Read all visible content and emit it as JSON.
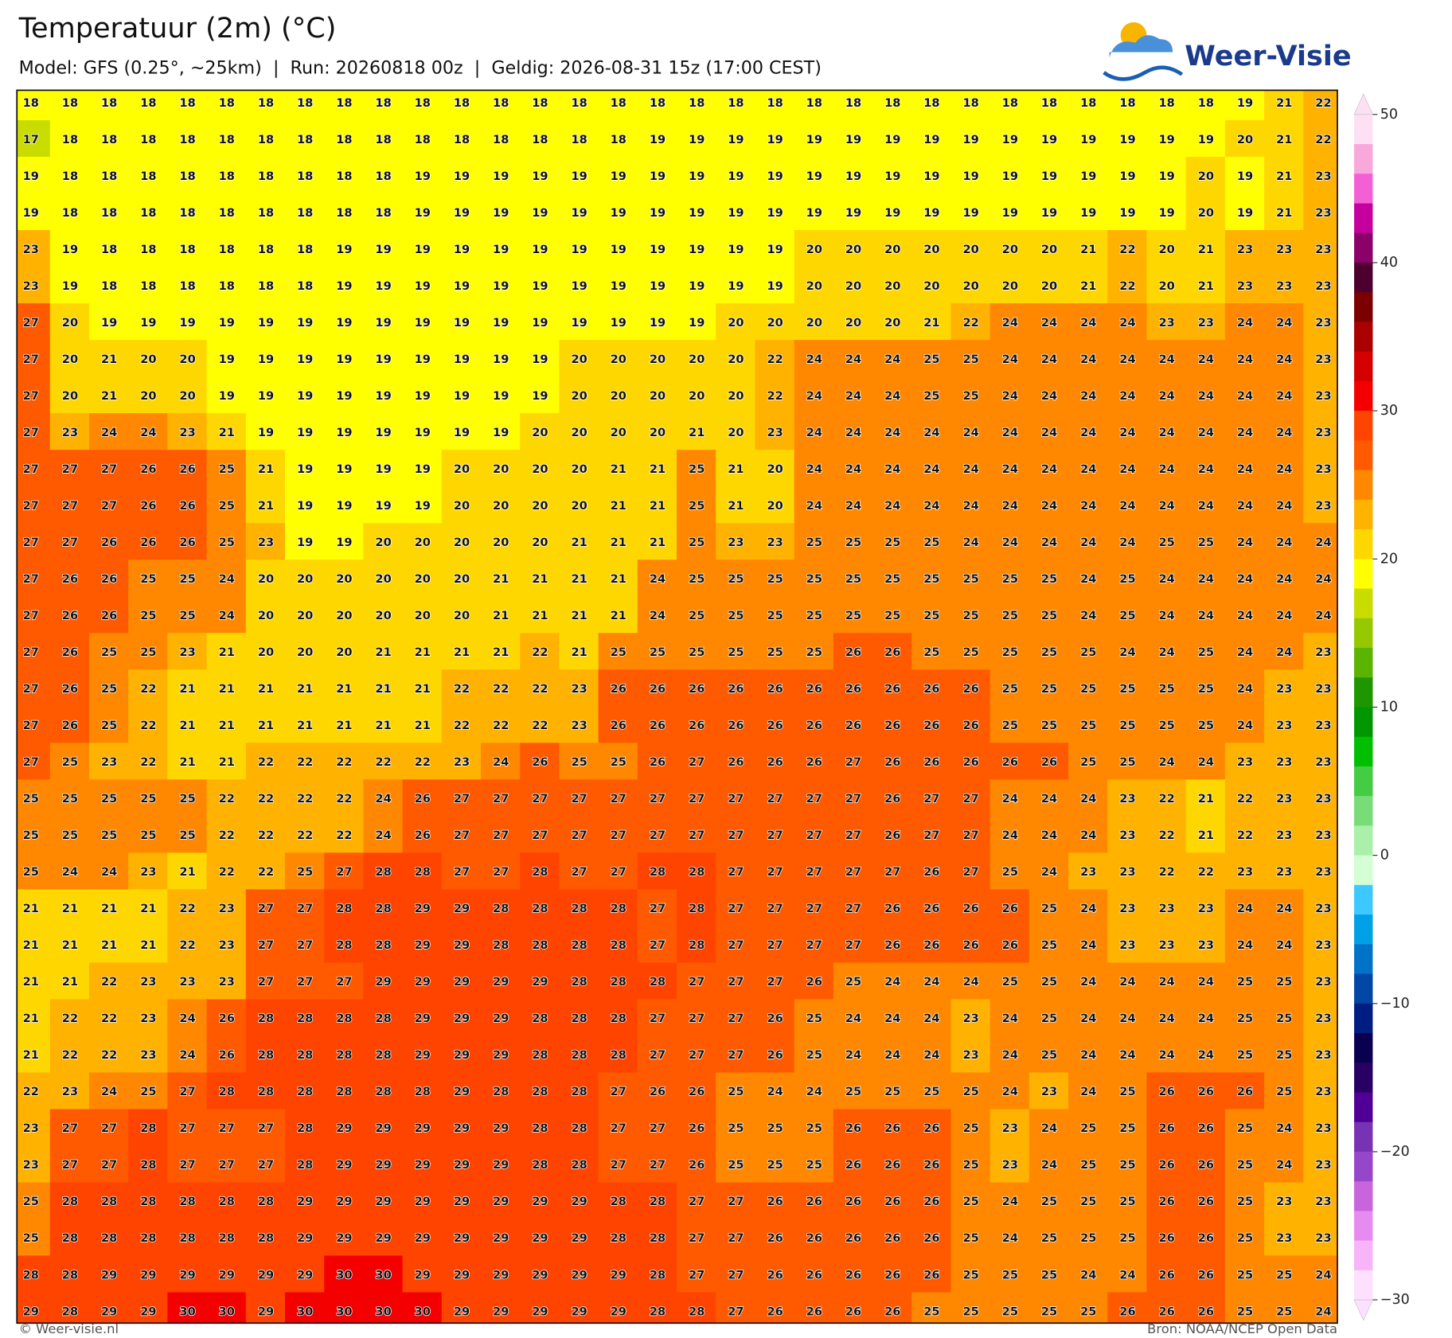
{
  "header": {
    "title": "Temperatuur (2m) (°C)",
    "subtitle": "Model: GFS (0.25°, ~25km)  |  Run: 20260818 00z  |  Geldig: 2026-08-31 15z (17:00 CEST)",
    "logo": "Weer-Visie"
  },
  "footer": {
    "copyright": "© Weer-visie.nl",
    "source": "Bron: NOAA/NCEP Open Data"
  },
  "colorbar": {
    "lim": [
      -30,
      50
    ],
    "ticks": [
      50,
      40,
      30,
      20,
      10,
      0,
      {
        "value": -10,
        "label": "−10"
      },
      {
        "value": -20,
        "label": "−20"
      },
      {
        "value": -30,
        "label": "−30"
      }
    ],
    "colors": [
      "#fde0f4",
      "#f9a8dc",
      "#f45fd5",
      "#c6009f",
      "#8b0069",
      "#4d0030",
      "#7d0000",
      "#aa0000",
      "#d40000",
      "#f50000",
      "#ff4400",
      "#ff5a00",
      "#ff8800",
      "#ffb200",
      "#ffd700",
      "#ffff00",
      "#c9dc00",
      "#96c800",
      "#5ab400",
      "#1e9600",
      "#009600",
      "#00be00",
      "#44cc44",
      "#78dc78",
      "#aaf0aa",
      "#d4ffd4",
      "#3dc8ff",
      "#00a0e6",
      "#0073c8",
      "#0046a5",
      "#001e82",
      "#0a0050",
      "#280064",
      "#500096",
      "#7832b4",
      "#9646c8",
      "#c864dc",
      "#e68cf0",
      "#f8b4f8",
      "#fde0fd"
    ]
  },
  "map": {
    "grid": [
      [
        18,
        18,
        18,
        18,
        18,
        18,
        18,
        18,
        18,
        18,
        18,
        18,
        18,
        18,
        18,
        18,
        18,
        18,
        18,
        18,
        18,
        18,
        18,
        18,
        18,
        18,
        18,
        18,
        18,
        18,
        18,
        19,
        21,
        22
      ],
      [
        17,
        18,
        18,
        18,
        18,
        18,
        18,
        18,
        18,
        18,
        18,
        18,
        18,
        18,
        18,
        18,
        19,
        19,
        19,
        19,
        19,
        19,
        19,
        19,
        19,
        19,
        19,
        19,
        19,
        19,
        19,
        20,
        21,
        22
      ],
      [
        19,
        18,
        18,
        18,
        18,
        18,
        18,
        18,
        18,
        18,
        19,
        19,
        19,
        19,
        19,
        19,
        19,
        19,
        19,
        19,
        19,
        19,
        19,
        19,
        19,
        19,
        19,
        19,
        19,
        19,
        20,
        19,
        21,
        23
      ],
      [
        19,
        18,
        18,
        18,
        18,
        18,
        18,
        18,
        18,
        18,
        19,
        19,
        19,
        19,
        19,
        19,
        19,
        19,
        19,
        19,
        19,
        19,
        19,
        19,
        19,
        19,
        19,
        19,
        19,
        19,
        20,
        19,
        21,
        23
      ],
      [
        23,
        19,
        18,
        18,
        18,
        18,
        18,
        18,
        19,
        19,
        19,
        19,
        19,
        19,
        19,
        19,
        19,
        19,
        19,
        19,
        20,
        20,
        20,
        20,
        20,
        20,
        20,
        21,
        22,
        20,
        21,
        23,
        23,
        23
      ],
      [
        23,
        19,
        18,
        18,
        18,
        18,
        18,
        18,
        19,
        19,
        19,
        19,
        19,
        19,
        19,
        19,
        19,
        19,
        19,
        19,
        20,
        20,
        20,
        20,
        20,
        20,
        20,
        21,
        22,
        20,
        21,
        23,
        23,
        23
      ],
      [
        27,
        20,
        19,
        19,
        19,
        19,
        19,
        19,
        19,
        19,
        19,
        19,
        19,
        19,
        19,
        19,
        19,
        19,
        20,
        20,
        20,
        20,
        20,
        21,
        22,
        24,
        24,
        24,
        24,
        23,
        23,
        24,
        24,
        23
      ],
      [
        27,
        20,
        21,
        20,
        20,
        19,
        19,
        19,
        19,
        19,
        19,
        19,
        19,
        19,
        20,
        20,
        20,
        20,
        20,
        22,
        24,
        24,
        24,
        25,
        25,
        24,
        24,
        24,
        24,
        24,
        24,
        24,
        24,
        23
      ],
      [
        27,
        20,
        21,
        20,
        20,
        19,
        19,
        19,
        19,
        19,
        19,
        19,
        19,
        19,
        20,
        20,
        20,
        20,
        20,
        22,
        24,
        24,
        24,
        25,
        25,
        24,
        24,
        24,
        24,
        24,
        24,
        24,
        24,
        23
      ],
      [
        27,
        23,
        24,
        24,
        23,
        21,
        19,
        19,
        19,
        19,
        19,
        19,
        19,
        20,
        20,
        20,
        20,
        21,
        20,
        23,
        24,
        24,
        24,
        24,
        24,
        24,
        24,
        24,
        24,
        24,
        24,
        24,
        24,
        23
      ],
      [
        27,
        27,
        27,
        26,
        26,
        25,
        21,
        19,
        19,
        19,
        19,
        20,
        20,
        20,
        20,
        21,
        21,
        25,
        21,
        20,
        24,
        24,
        24,
        24,
        24,
        24,
        24,
        24,
        24,
        24,
        24,
        24,
        24,
        23
      ],
      [
        27,
        27,
        27,
        26,
        26,
        25,
        21,
        19,
        19,
        19,
        19,
        20,
        20,
        20,
        20,
        21,
        21,
        25,
        21,
        20,
        24,
        24,
        24,
        24,
        24,
        24,
        24,
        24,
        24,
        24,
        24,
        24,
        24,
        23
      ],
      [
        27,
        27,
        26,
        26,
        26,
        25,
        23,
        19,
        19,
        20,
        20,
        20,
        20,
        20,
        21,
        21,
        21,
        25,
        23,
        23,
        25,
        25,
        25,
        25,
        24,
        24,
        24,
        24,
        24,
        25,
        25,
        24,
        24,
        24
      ],
      [
        27,
        26,
        26,
        25,
        25,
        24,
        20,
        20,
        20,
        20,
        20,
        20,
        21,
        21,
        21,
        21,
        24,
        25,
        25,
        25,
        25,
        25,
        25,
        25,
        25,
        25,
        25,
        24,
        25,
        24,
        24,
        24,
        24,
        24
      ],
      [
        27,
        26,
        26,
        25,
        25,
        24,
        20,
        20,
        20,
        20,
        20,
        20,
        21,
        21,
        21,
        21,
        24,
        25,
        25,
        25,
        25,
        25,
        25,
        25,
        25,
        25,
        25,
        24,
        25,
        24,
        24,
        24,
        24,
        24
      ],
      [
        27,
        26,
        25,
        25,
        23,
        21,
        20,
        20,
        20,
        21,
        21,
        21,
        21,
        22,
        21,
        25,
        25,
        25,
        25,
        25,
        25,
        26,
        26,
        25,
        25,
        25,
        25,
        25,
        24,
        24,
        25,
        24,
        24,
        23
      ],
      [
        27,
        26,
        25,
        22,
        21,
        21,
        21,
        21,
        21,
        21,
        21,
        22,
        22,
        22,
        23,
        26,
        26,
        26,
        26,
        26,
        26,
        26,
        26,
        26,
        26,
        25,
        25,
        25,
        25,
        25,
        25,
        24,
        23,
        23
      ],
      [
        27,
        26,
        25,
        22,
        21,
        21,
        21,
        21,
        21,
        21,
        21,
        22,
        22,
        22,
        23,
        26,
        26,
        26,
        26,
        26,
        26,
        26,
        26,
        26,
        26,
        25,
        25,
        25,
        25,
        25,
        25,
        24,
        23,
        23
      ],
      [
        27,
        25,
        23,
        22,
        21,
        21,
        22,
        22,
        22,
        22,
        22,
        23,
        24,
        26,
        25,
        25,
        26,
        27,
        26,
        26,
        26,
        27,
        26,
        26,
        26,
        26,
        26,
        25,
        25,
        24,
        24,
        23,
        23,
        23
      ],
      [
        25,
        25,
        25,
        25,
        25,
        22,
        22,
        22,
        22,
        24,
        26,
        27,
        27,
        27,
        27,
        27,
        27,
        27,
        27,
        27,
        27,
        27,
        26,
        27,
        27,
        24,
        24,
        24,
        23,
        22,
        21,
        22,
        23,
        23
      ],
      [
        25,
        25,
        25,
        25,
        25,
        22,
        22,
        22,
        22,
        24,
        26,
        27,
        27,
        27,
        27,
        27,
        27,
        27,
        27,
        27,
        27,
        27,
        26,
        27,
        27,
        24,
        24,
        24,
        23,
        22,
        21,
        22,
        23,
        23
      ],
      [
        25,
        24,
        24,
        23,
        21,
        22,
        22,
        25,
        27,
        28,
        28,
        27,
        27,
        28,
        27,
        27,
        28,
        28,
        27,
        27,
        27,
        27,
        27,
        26,
        27,
        25,
        24,
        23,
        23,
        22,
        22,
        23,
        23,
        23
      ],
      [
        21,
        21,
        21,
        21,
        22,
        23,
        27,
        27,
        28,
        28,
        29,
        29,
        28,
        28,
        28,
        28,
        27,
        28,
        27,
        27,
        27,
        27,
        26,
        26,
        26,
        26,
        25,
        24,
        23,
        23,
        23,
        24,
        24,
        23
      ],
      [
        21,
        21,
        21,
        21,
        22,
        23,
        27,
        27,
        28,
        28,
        29,
        29,
        28,
        28,
        28,
        28,
        27,
        28,
        27,
        27,
        27,
        27,
        26,
        26,
        26,
        26,
        25,
        24,
        23,
        23,
        23,
        24,
        24,
        23
      ],
      [
        21,
        21,
        22,
        23,
        23,
        23,
        27,
        27,
        27,
        29,
        29,
        29,
        29,
        29,
        28,
        28,
        28,
        27,
        27,
        27,
        26,
        25,
        24,
        24,
        24,
        25,
        25,
        24,
        24,
        24,
        24,
        25,
        25,
        23
      ],
      [
        21,
        22,
        22,
        23,
        24,
        26,
        28,
        28,
        28,
        28,
        29,
        29,
        29,
        28,
        28,
        28,
        27,
        27,
        27,
        26,
        25,
        24,
        24,
        24,
        23,
        24,
        25,
        24,
        24,
        24,
        24,
        25,
        25,
        23
      ],
      [
        21,
        22,
        22,
        23,
        24,
        26,
        28,
        28,
        28,
        28,
        29,
        29,
        29,
        28,
        28,
        28,
        27,
        27,
        27,
        26,
        25,
        24,
        24,
        24,
        23,
        24,
        25,
        24,
        24,
        24,
        24,
        25,
        25,
        23
      ],
      [
        22,
        23,
        24,
        25,
        27,
        28,
        28,
        28,
        28,
        28,
        28,
        29,
        28,
        28,
        28,
        27,
        26,
        26,
        25,
        24,
        24,
        25,
        25,
        25,
        25,
        24,
        23,
        24,
        25,
        26,
        26,
        26,
        25,
        23
      ],
      [
        23,
        27,
        27,
        28,
        27,
        27,
        27,
        28,
        29,
        29,
        29,
        29,
        29,
        28,
        28,
        27,
        27,
        26,
        25,
        25,
        25,
        26,
        26,
        26,
        25,
        23,
        24,
        25,
        25,
        26,
        26,
        25,
        24,
        23
      ],
      [
        23,
        27,
        27,
        28,
        27,
        27,
        27,
        28,
        29,
        29,
        29,
        29,
        29,
        28,
        28,
        27,
        27,
        26,
        25,
        25,
        25,
        26,
        26,
        26,
        25,
        23,
        24,
        25,
        25,
        26,
        26,
        25,
        24,
        23
      ],
      [
        25,
        28,
        28,
        28,
        28,
        28,
        28,
        29,
        29,
        29,
        29,
        29,
        29,
        29,
        29,
        28,
        28,
        27,
        27,
        26,
        26,
        26,
        26,
        26,
        25,
        24,
        25,
        25,
        25,
        26,
        26,
        25,
        23,
        23
      ],
      [
        25,
        28,
        28,
        28,
        28,
        28,
        28,
        29,
        29,
        29,
        29,
        29,
        29,
        29,
        29,
        28,
        28,
        27,
        27,
        26,
        26,
        26,
        26,
        26,
        25,
        24,
        25,
        25,
        25,
        26,
        26,
        25,
        23,
        23
      ],
      [
        28,
        28,
        29,
        29,
        29,
        29,
        29,
        29,
        30,
        30,
        29,
        29,
        29,
        29,
        29,
        29,
        28,
        27,
        27,
        26,
        26,
        26,
        26,
        26,
        25,
        25,
        25,
        24,
        24,
        26,
        26,
        25,
        25,
        24
      ],
      [
        29,
        28,
        29,
        29,
        30,
        30,
        29,
        30,
        30,
        30,
        30,
        29,
        29,
        29,
        29,
        29,
        28,
        28,
        27,
        26,
        26,
        26,
        26,
        25,
        25,
        25,
        25,
        25,
        26,
        26,
        26,
        25,
        25,
        24
      ]
    ]
  }
}
